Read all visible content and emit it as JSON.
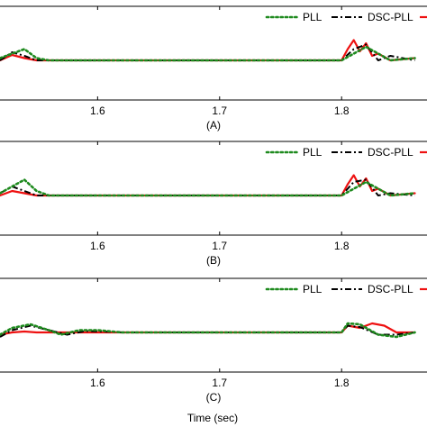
{
  "xlabel": "Time (sec)",
  "colors": {
    "pll": "#1e8a1e",
    "dsc": "#000000",
    "prop": "#ee1111",
    "axis": "#000000"
  },
  "chart_data": [
    {
      "type": "line",
      "caption": "(A)",
      "xlim": [
        1.52,
        1.87
      ],
      "ylim": [
        -1,
        1
      ],
      "xticks": [
        "1.6",
        "1.7",
        "1.8"
      ],
      "legend": [
        "PLL",
        "DSC-PLL"
      ],
      "legend_position": "top-right",
      "series": [
        {
          "name": "PLL",
          "style": "dotted",
          "x": [
            1.52,
            1.53,
            1.54,
            1.55,
            1.56,
            1.6,
            1.65,
            1.7,
            1.75,
            1.8,
            1.82,
            1.84,
            1.86
          ],
          "y": [
            0.05,
            0.15,
            0.25,
            0.05,
            0.0,
            0.0,
            0.0,
            0.0,
            0.0,
            0.0,
            0.3,
            0.0,
            0.05
          ]
        },
        {
          "name": "DSC-PLL",
          "style": "dashdot",
          "x": [
            1.52,
            1.53,
            1.54,
            1.55,
            1.57,
            1.6,
            1.7,
            1.8,
            1.81,
            1.82,
            1.83,
            1.84,
            1.86
          ],
          "y": [
            0.0,
            0.18,
            0.1,
            0.0,
            0.0,
            0.0,
            0.0,
            0.0,
            0.25,
            0.35,
            0.0,
            0.1,
            0.0
          ]
        },
        {
          "x": [
            1.52,
            1.53,
            1.54,
            1.55,
            1.57,
            1.6,
            1.7,
            1.8,
            1.805,
            1.81,
            1.815,
            1.82,
            1.825,
            1.83,
            1.84,
            1.86
          ],
          "y": [
            0.0,
            0.12,
            0.05,
            0.0,
            0.0,
            0.0,
            0.0,
            0.0,
            0.25,
            0.45,
            0.2,
            0.38,
            0.1,
            0.15,
            0.0,
            0.05
          ]
        }
      ]
    },
    {
      "type": "line",
      "caption": "(B)",
      "xlim": [
        1.52,
        1.87
      ],
      "ylim": [
        -1,
        1
      ],
      "xticks": [
        "1.6",
        "1.7",
        "1.8"
      ],
      "legend": [
        "PLL",
        "DSC-PLL"
      ],
      "legend_position": "top-right",
      "series": [
        {
          "name": "PLL",
          "style": "dotted",
          "x": [
            1.52,
            1.53,
            1.54,
            1.55,
            1.56,
            1.6,
            1.65,
            1.7,
            1.75,
            1.8,
            1.82,
            1.84,
            1.86
          ],
          "y": [
            0.05,
            0.2,
            0.35,
            0.1,
            0.0,
            0.0,
            0.0,
            0.0,
            0.0,
            0.0,
            0.3,
            0.0,
            0.05
          ]
        },
        {
          "name": "DSC-PLL",
          "style": "dashdot",
          "x": [
            1.52,
            1.53,
            1.54,
            1.55,
            1.57,
            1.6,
            1.7,
            1.8,
            1.81,
            1.82,
            1.83,
            1.84,
            1.86
          ],
          "y": [
            0.05,
            0.2,
            0.1,
            0.0,
            0.0,
            0.0,
            0.0,
            0.0,
            0.3,
            0.35,
            0.0,
            0.05,
            0.0
          ]
        },
        {
          "x": [
            1.52,
            1.53,
            1.54,
            1.55,
            1.57,
            1.6,
            1.7,
            1.8,
            1.805,
            1.81,
            1.815,
            1.82,
            1.825,
            1.83,
            1.84,
            1.86
          ],
          "y": [
            0.0,
            0.1,
            0.05,
            0.0,
            0.0,
            0.0,
            0.0,
            0.0,
            0.25,
            0.45,
            0.2,
            0.38,
            0.1,
            0.15,
            0.0,
            0.05
          ]
        }
      ]
    },
    {
      "type": "line",
      "caption": "(C)",
      "xlim": [
        1.52,
        1.87
      ],
      "ylim": [
        -1,
        1
      ],
      "xticks": [
        "1.6",
        "1.7",
        "1.8"
      ],
      "legend": [
        "PLL",
        "DSC-PLL"
      ],
      "legend_position": "top-right",
      "series": [
        {
          "name": "PLL",
          "style": "dotted",
          "x": [
            1.52,
            1.53,
            1.545,
            1.56,
            1.57,
            1.585,
            1.6,
            1.62,
            1.65,
            1.7,
            1.8,
            1.805,
            1.815,
            1.83,
            1.845,
            1.86
          ],
          "y": [
            -0.05,
            0.1,
            0.18,
            0.05,
            -0.05,
            0.05,
            0.05,
            0.0,
            0.0,
            0.0,
            0.0,
            0.2,
            0.18,
            -0.05,
            -0.1,
            0.0
          ]
        },
        {
          "name": "DSC-PLL",
          "style": "dashdot",
          "x": [
            1.52,
            1.53,
            1.545,
            1.56,
            1.575,
            1.59,
            1.605,
            1.62,
            1.65,
            1.7,
            1.8,
            1.805,
            1.815,
            1.83,
            1.845,
            1.86
          ],
          "y": [
            -0.1,
            0.05,
            0.15,
            0.05,
            -0.05,
            0.03,
            0.02,
            0.0,
            0.0,
            0.0,
            0.0,
            0.15,
            0.12,
            -0.05,
            -0.05,
            0.0
          ]
        },
        {
          "x": [
            1.52,
            1.53,
            1.54,
            1.55,
            1.57,
            1.6,
            1.65,
            1.7,
            1.8,
            1.805,
            1.815,
            1.825,
            1.835,
            1.845,
            1.86
          ],
          "y": [
            -0.05,
            0.0,
            0.02,
            0.0,
            0.0,
            0.0,
            0.0,
            0.0,
            0.0,
            0.15,
            0.1,
            0.2,
            0.15,
            0.0,
            0.0
          ]
        }
      ]
    }
  ]
}
